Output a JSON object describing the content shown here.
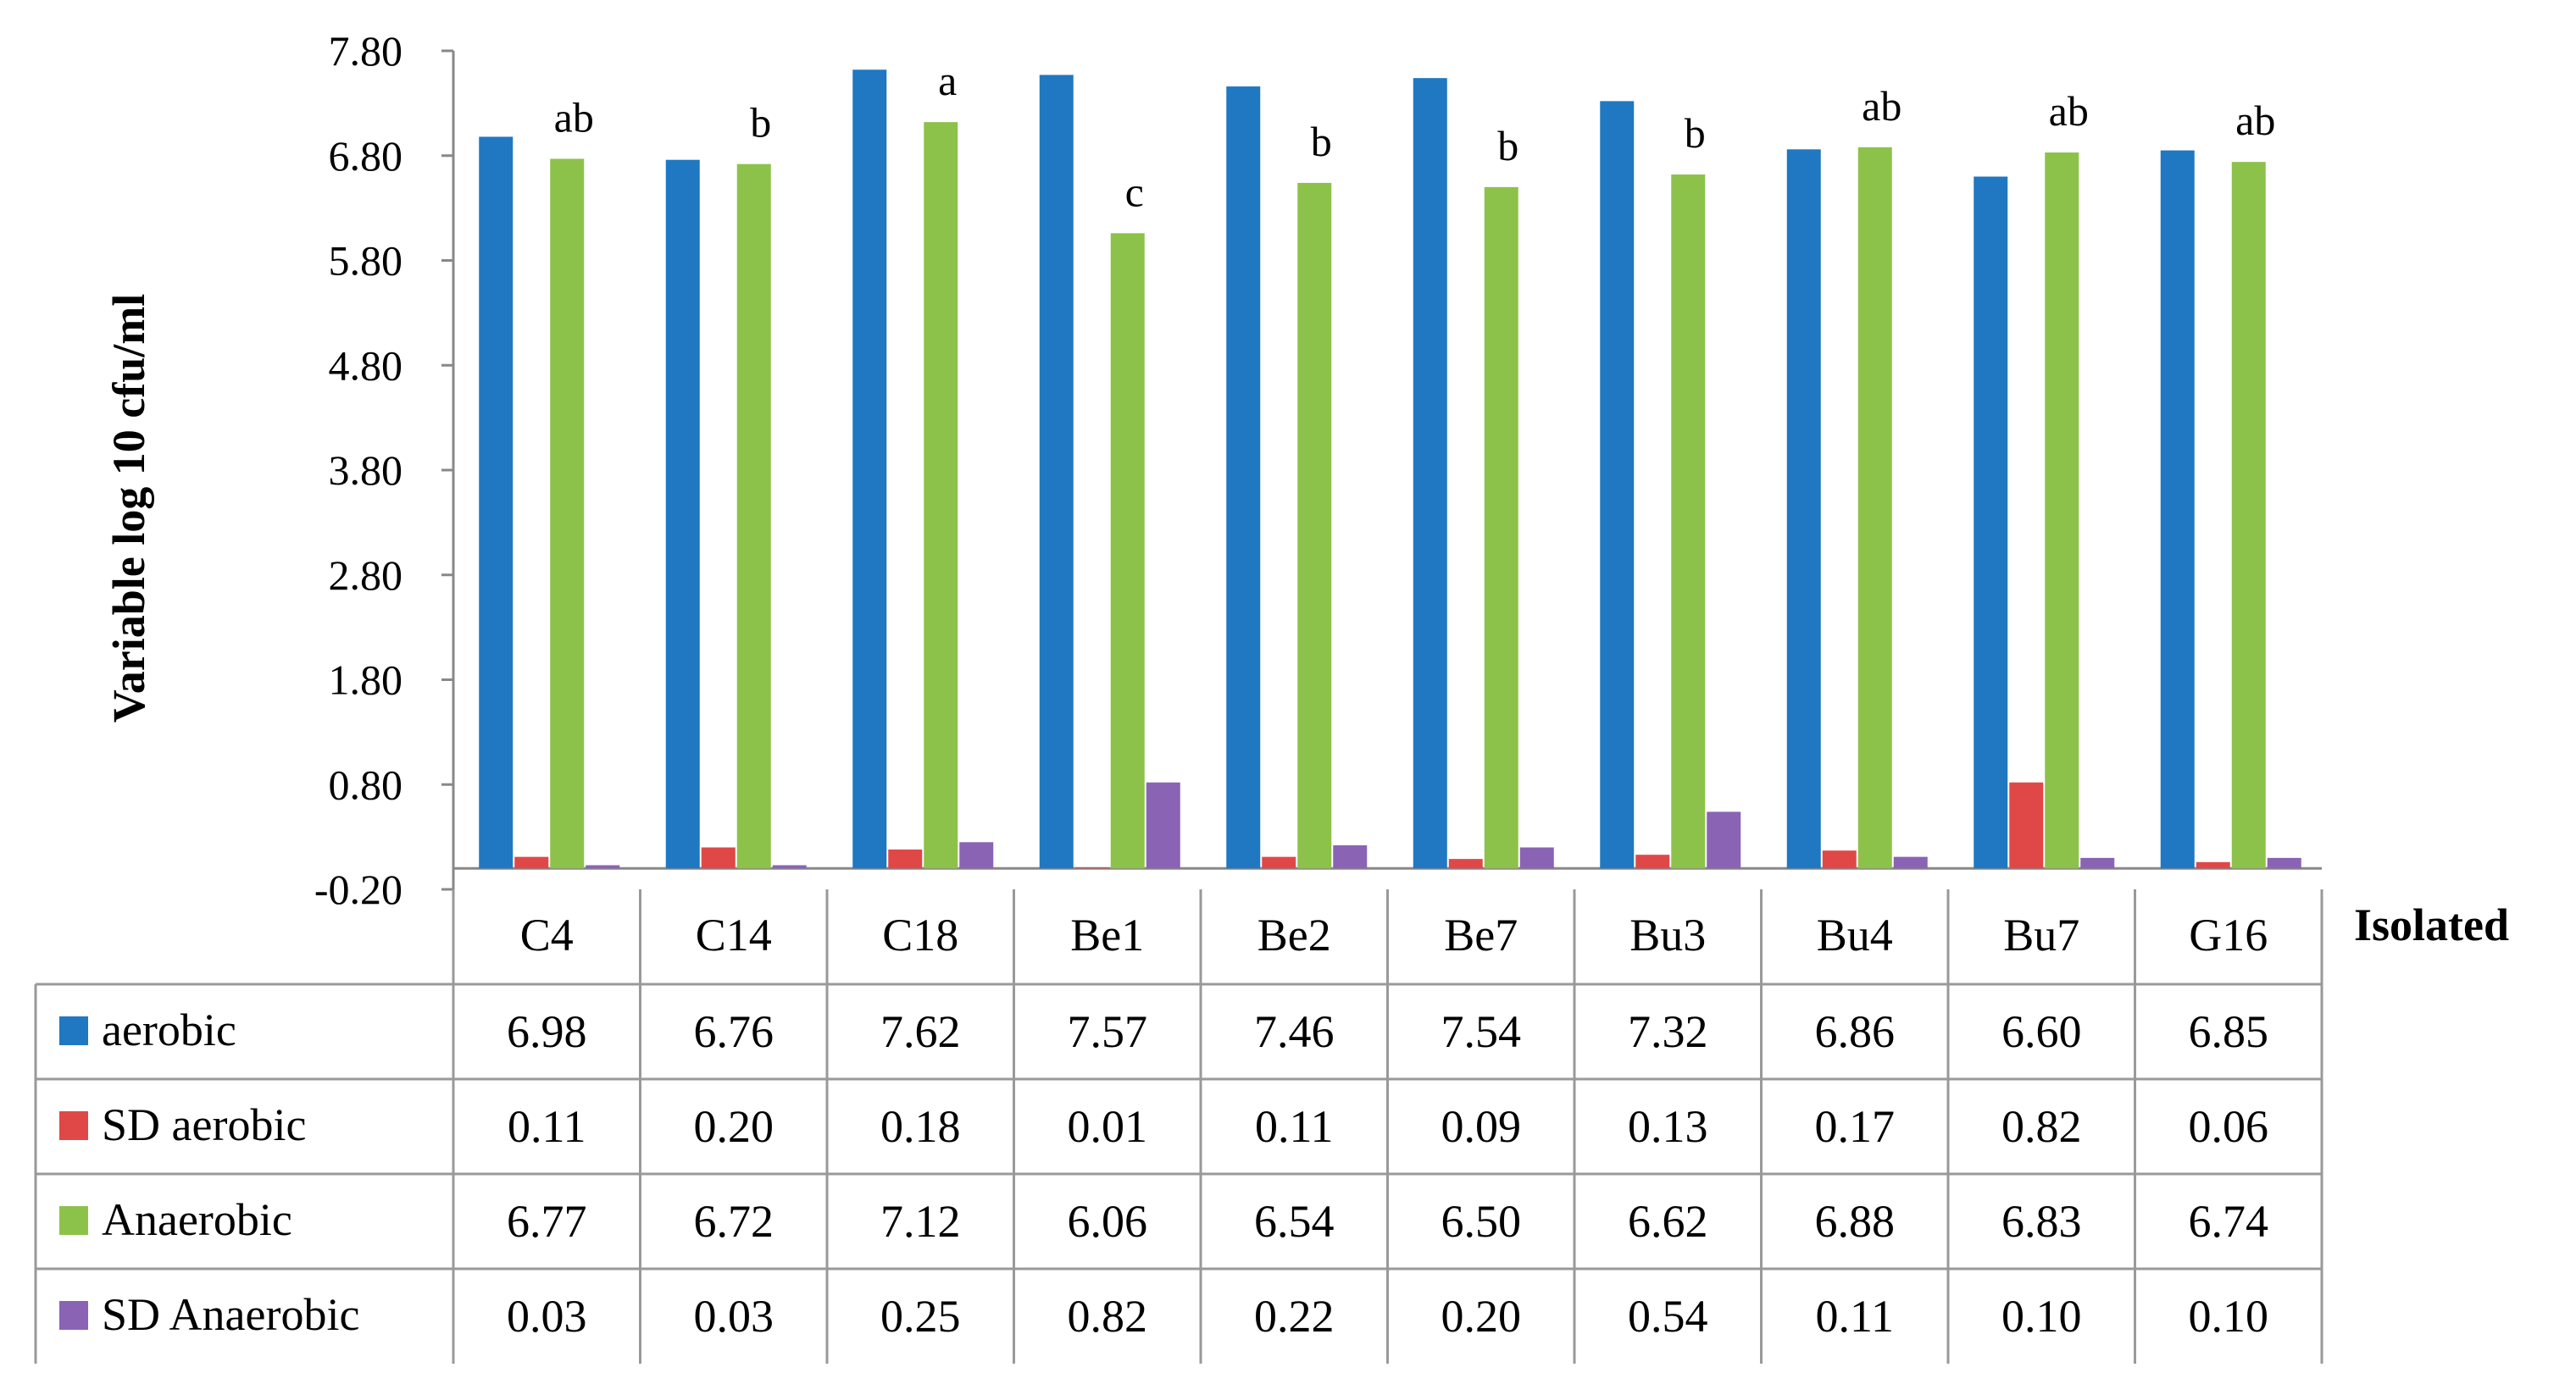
{
  "chart_data": {
    "type": "bar",
    "ylabel": "Variable log 10 cfu/ml",
    "xlabel": "Isolated",
    "ylim": [
      -0.2,
      7.8
    ],
    "yticks": [
      "7.80",
      "6.80",
      "5.80",
      "4.80",
      "3.80",
      "2.80",
      "1.80",
      "0.80",
      "-0.20"
    ],
    "ytick_values": [
      7.8,
      6.8,
      5.8,
      4.8,
      3.8,
      2.8,
      1.8,
      0.8,
      -0.2
    ],
    "categories": [
      "C4",
      "C14",
      "C18",
      "Be1",
      "Be2",
      "Be7",
      "Bu3",
      "Bu4",
      "Bu7",
      "G16"
    ],
    "series": [
      {
        "name": "aerobic",
        "color": "#1f78c1",
        "values": [
          "6.98",
          "6.76",
          "7.62",
          "7.57",
          "7.46",
          "7.54",
          "7.32",
          "6.86",
          "6.60",
          "6.85"
        ]
      },
      {
        "name": "SD aerobic",
        "color": "#e04848",
        "values": [
          "0.11",
          "0.20",
          "0.18",
          "0.01",
          "0.11",
          "0.09",
          "0.13",
          "0.17",
          "0.82",
          "0.06"
        ]
      },
      {
        "name": "Anaerobic",
        "color": "#8dc24a",
        "values": [
          "6.77",
          "6.72",
          "7.12",
          "6.06",
          "6.54",
          "6.50",
          "6.62",
          "6.88",
          "6.83",
          "6.74"
        ]
      },
      {
        "name": "SD Anaerobic",
        "color": "#8a63b5",
        "values": [
          "0.03",
          "0.03",
          "0.25",
          "0.82",
          "0.22",
          "0.20",
          "0.54",
          "0.11",
          "0.10",
          "0.10"
        ]
      }
    ],
    "significance_letters": [
      "ab",
      "b",
      "a",
      "c",
      "b",
      "b",
      "b",
      "ab",
      "ab",
      "ab"
    ],
    "grid": false,
    "legend": "data-table-left"
  }
}
